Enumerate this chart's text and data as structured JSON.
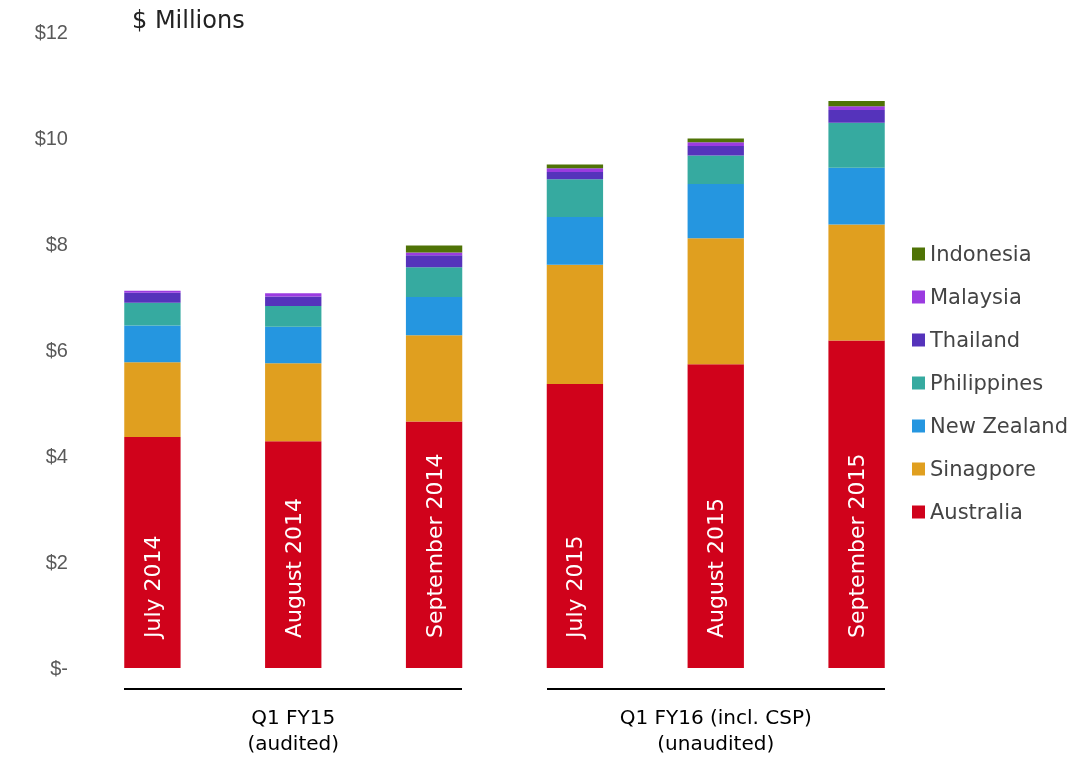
{
  "chart_data": {
    "type": "bar",
    "stacked": true,
    "ylabel": "$ Millions",
    "categories": [
      "July 2014",
      "August 2014",
      "September 2014",
      "July 2015",
      "August 2015",
      "September 2015"
    ],
    "series": [
      {
        "name": "Australia",
        "color": "#d0021b",
        "values": [
          4.36,
          4.28,
          4.65,
          5.36,
          5.73,
          6.18
        ]
      },
      {
        "name": "Sinagpore",
        "color": "#e09f1f",
        "values": [
          1.41,
          1.47,
          1.63,
          2.25,
          2.38,
          2.19
        ]
      },
      {
        "name": "New Zealand",
        "color": "#2596e0",
        "values": [
          0.69,
          0.69,
          0.72,
          0.9,
          1.02,
          1.07
        ]
      },
      {
        "name": "Philippines",
        "color": "#36aaa0",
        "values": [
          0.43,
          0.39,
          0.56,
          0.71,
          0.54,
          0.85
        ]
      },
      {
        "name": "Thailand",
        "color": "#5533bb",
        "values": [
          0.19,
          0.18,
          0.23,
          0.14,
          0.18,
          0.24
        ]
      },
      {
        "name": "Malaysia",
        "color": "#9b3be0",
        "values": [
          0.04,
          0.06,
          0.05,
          0.07,
          0.07,
          0.07
        ]
      },
      {
        "name": "Indonesia",
        "color": "#4f7306",
        "values": [
          0,
          0,
          0.13,
          0.07,
          0.07,
          0.1
        ]
      }
    ],
    "ylim": [
      0,
      12
    ],
    "yticks": [
      {
        "value": 0,
        "label": "$-"
      },
      {
        "value": 2,
        "label": "$2"
      },
      {
        "value": 4,
        "label": "$4"
      },
      {
        "value": 6,
        "label": "$6"
      },
      {
        "value": 8,
        "label": "$8"
      },
      {
        "value": 10,
        "label": "$10"
      },
      {
        "value": 12,
        "label": "$12"
      }
    ],
    "grid": false,
    "legend": "right",
    "annotations": [
      "Q1 FY15\n(audited)",
      "Q1 FY16 (incl. CSP)\n(unaudited)"
    ]
  }
}
